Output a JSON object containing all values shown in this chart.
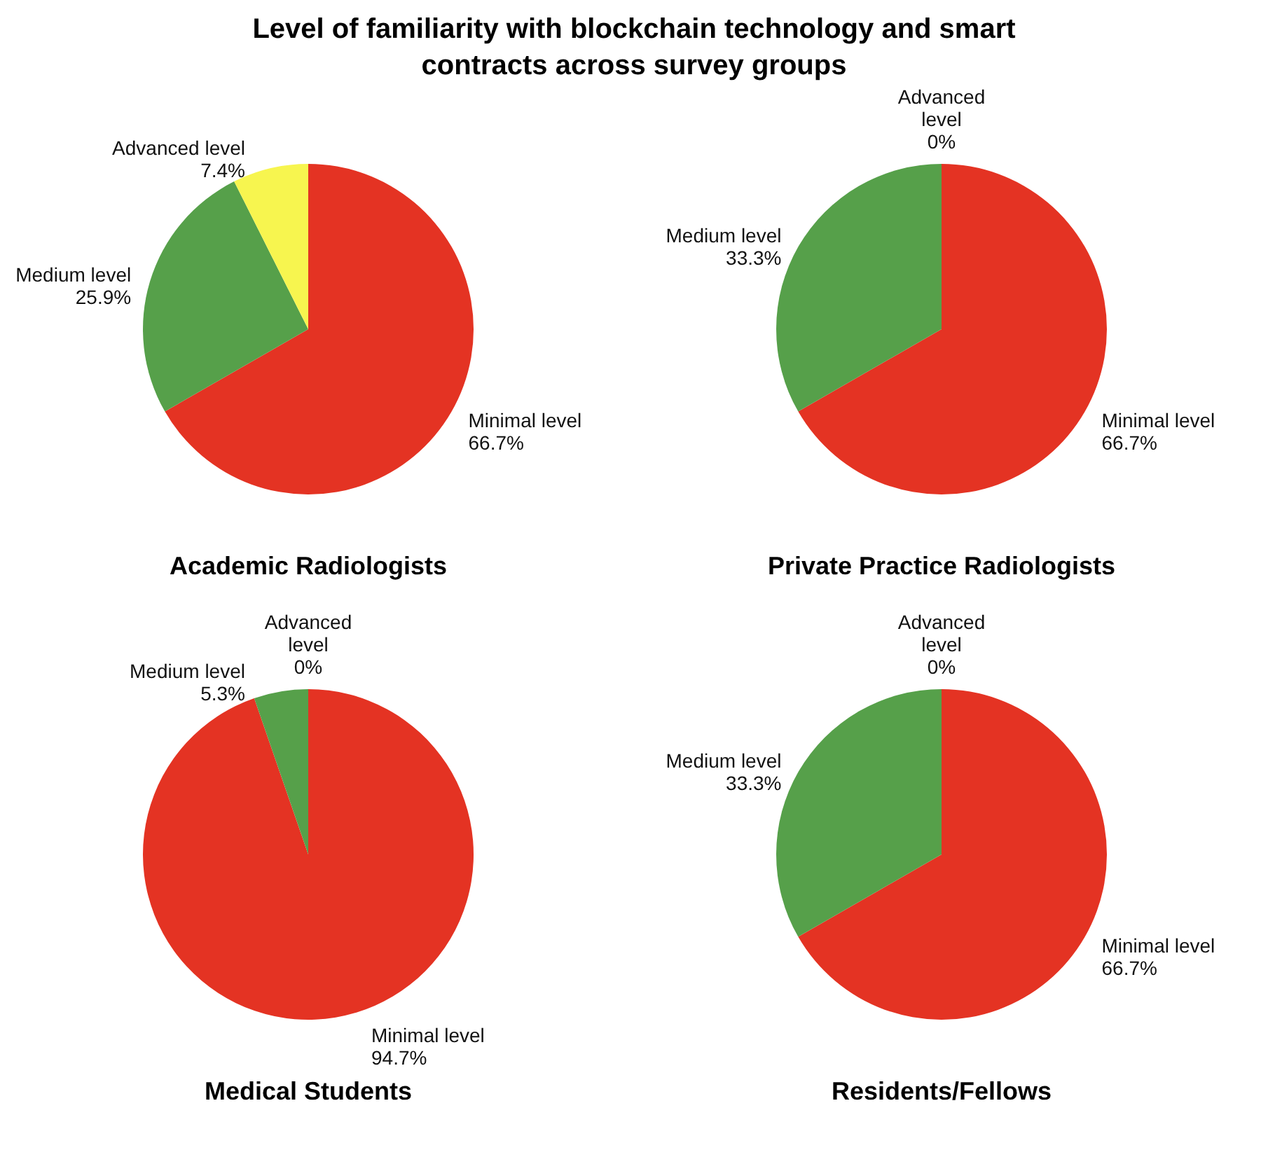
{
  "chart_data": [
    {
      "type": "pie",
      "title": "Level of familiarity with blockchain technology and smart contracts across survey groups",
      "xlabel": "Academic Radiologists",
      "categories": [
        "Minimal level",
        "Medium level",
        "Advanced level"
      ],
      "values": [
        66.7,
        25.9,
        7.4
      ],
      "value_labels": [
        "66.7%",
        "25.9%",
        "7.4%"
      ],
      "colors": [
        "#e43323",
        "#56a04a",
        "#f7f54f"
      ]
    },
    {
      "type": "pie",
      "xlabel": "Private Practice Radiologists",
      "categories": [
        "Minimal level",
        "Medium level",
        "Advanced level"
      ],
      "values": [
        66.7,
        33.3,
        0
      ],
      "value_labels": [
        "66.7%",
        "33.3%",
        "0%"
      ],
      "colors": [
        "#e43323",
        "#56a04a",
        "#f7f54f"
      ]
    },
    {
      "type": "pie",
      "xlabel": "Medical Students",
      "categories": [
        "Minimal level",
        "Medium level",
        "Advanced level"
      ],
      "values": [
        94.7,
        5.3,
        0
      ],
      "value_labels": [
        "94.7%",
        "5.3%",
        "0%"
      ],
      "colors": [
        "#e43323",
        "#56a04a",
        "#f7f54f"
      ]
    },
    {
      "type": "pie",
      "xlabel": "Residents/Fellows",
      "categories": [
        "Minimal level",
        "Medium level",
        "Advanced level"
      ],
      "values": [
        66.7,
        33.3,
        0
      ],
      "value_labels": [
        "66.7%",
        "33.3%",
        "0%"
      ],
      "colors": [
        "#e43323",
        "#56a04a",
        "#f7f54f"
      ]
    }
  ]
}
